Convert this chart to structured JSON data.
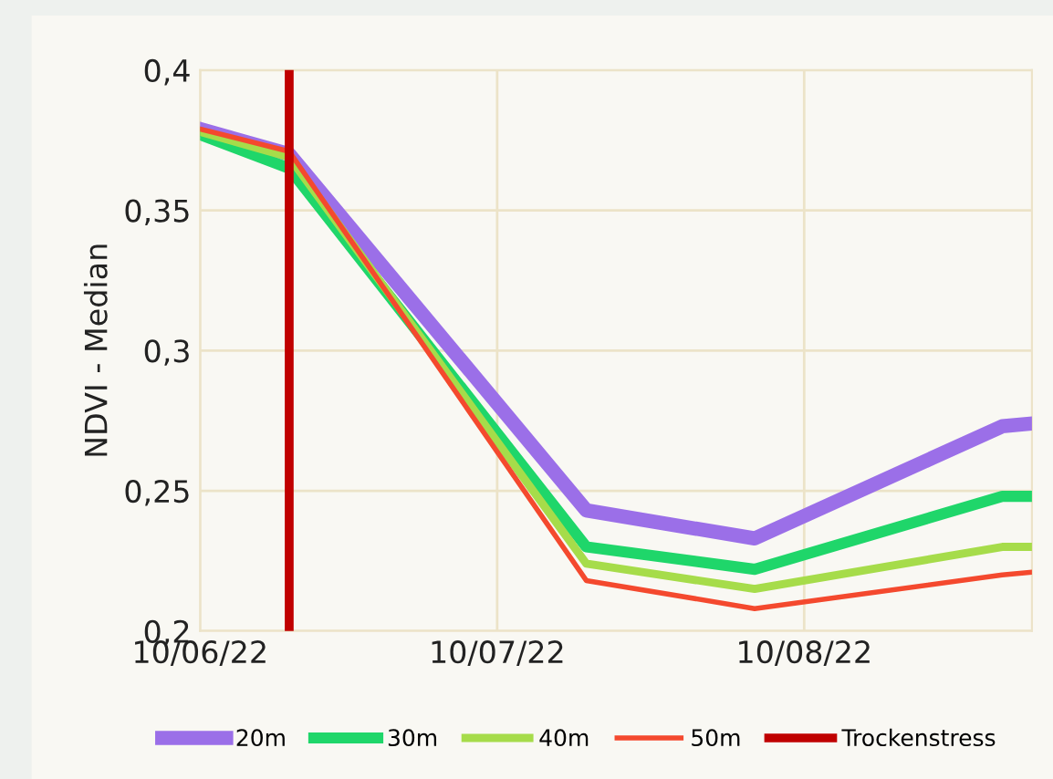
{
  "chart_data": {
    "type": "line",
    "ylabel": "NDVI - Median",
    "x": [
      "2022-06-10",
      "2022-06-19",
      "2022-07-19",
      "2022-08-05",
      "2022-08-30",
      "2022-09-02"
    ],
    "series": [
      {
        "name": "20m",
        "color": "#9b6fe8",
        "values": [
          0.379,
          0.37,
          0.243,
          0.233,
          0.273,
          0.274
        ]
      },
      {
        "name": "30m",
        "color": "#1fd66a",
        "values": [
          0.377,
          0.365,
          0.23,
          0.222,
          0.248,
          0.248
        ]
      },
      {
        "name": "40m",
        "color": "#a6dc4a",
        "values": [
          0.378,
          0.369,
          0.224,
          0.215,
          0.23,
          0.23
        ]
      },
      {
        "name": "50m",
        "color": "#f4492e",
        "values": [
          0.379,
          0.371,
          0.218,
          0.208,
          0.22,
          0.221
        ]
      }
    ],
    "ref_lines": [
      {
        "axis": "x",
        "value": "2022-06-19",
        "label": "Trockenstress",
        "color": "#c00000"
      }
    ],
    "xlim": [
      "2022-06-10",
      "2022-09-02"
    ],
    "xticks": [
      {
        "value": "2022-06-10",
        "label": "10/06/22"
      },
      {
        "value": "2022-07-10",
        "label": "10/07/22"
      },
      {
        "value": "2022-08-10",
        "label": "10/08/22"
      }
    ],
    "ylim": [
      0.2,
      0.4
    ],
    "yticks": [
      {
        "value": 0.2,
        "label": "0,2"
      },
      {
        "value": 0.25,
        "label": "0,25"
      },
      {
        "value": 0.3,
        "label": "0,3"
      },
      {
        "value": 0.35,
        "label": "0,35"
      },
      {
        "value": 0.4,
        "label": "0,4"
      }
    ],
    "grid": true,
    "legend": "bottom",
    "marker": "none",
    "line_style": "solid"
  }
}
